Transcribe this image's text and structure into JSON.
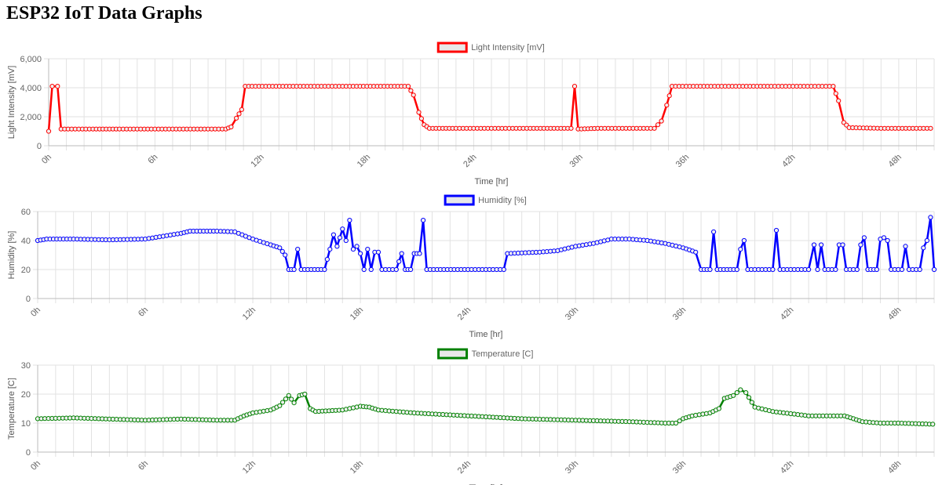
{
  "page": {
    "title": "ESP32 IoT Data Graphs"
  },
  "chart_data": [
    {
      "type": "line",
      "series_name": "Light Intensity [mV]",
      "color": "#ff0000",
      "ylabel": "Light Intensity [mV]",
      "xlabel": "Time [hr]",
      "ylim": [
        0,
        6000
      ],
      "yticks": [
        0,
        2000,
        4000,
        6000
      ],
      "ytick_labels": [
        "0",
        "2,000",
        "4,000",
        "6,000"
      ],
      "xlim": [
        0,
        50
      ],
      "xticks": [
        0,
        6,
        12,
        18,
        24,
        30,
        36,
        42,
        48
      ],
      "xtick_labels": [
        "0h",
        "6h",
        "12h",
        "18h",
        "24h",
        "30h",
        "36h",
        "42h",
        "48h"
      ],
      "points": [
        [
          0,
          1000
        ],
        [
          0.2,
          4100
        ],
        [
          0.5,
          4100
        ],
        [
          0.7,
          1150
        ],
        [
          1.5,
          1150
        ],
        [
          2.5,
          1150
        ],
        [
          4,
          1150
        ],
        [
          6,
          1150
        ],
        [
          8,
          1150
        ],
        [
          10,
          1150
        ],
        [
          10.3,
          1300
        ],
        [
          10.6,
          1900
        ],
        [
          10.9,
          2500
        ],
        [
          11.1,
          4100
        ],
        [
          14,
          4100
        ],
        [
          17,
          4100
        ],
        [
          20.3,
          4100
        ],
        [
          20.6,
          3500
        ],
        [
          20.9,
          2300
        ],
        [
          21.2,
          1450
        ],
        [
          21.5,
          1200
        ],
        [
          23,
          1200
        ],
        [
          25,
          1200
        ],
        [
          27,
          1200
        ],
        [
          29.5,
          1200
        ],
        [
          29.7,
          4100
        ],
        [
          29.9,
          1150
        ],
        [
          31,
          1200
        ],
        [
          33,
          1200
        ],
        [
          34.2,
          1200
        ],
        [
          34.6,
          1700
        ],
        [
          34.9,
          2800
        ],
        [
          35.2,
          4100
        ],
        [
          38,
          4100
        ],
        [
          41,
          4100
        ],
        [
          44.3,
          4100
        ],
        [
          44.6,
          3100
        ],
        [
          44.9,
          1600
        ],
        [
          45.2,
          1250
        ],
        [
          47,
          1200
        ],
        [
          49.8,
          1200
        ]
      ]
    },
    {
      "type": "line",
      "series_name": "Humidity [%]",
      "color": "#0000ff",
      "ylabel": "Humidity [%]",
      "xlabel": "Time [hr]",
      "ylim": [
        0,
        60
      ],
      "yticks": [
        0,
        20,
        40,
        60
      ],
      "ytick_labels": [
        "0",
        "20",
        "40",
        "60"
      ],
      "xlim": [
        0,
        50
      ],
      "xticks": [
        0,
        6,
        12,
        18,
        24,
        30,
        36,
        42,
        48
      ],
      "xtick_labels": [
        "0h",
        "6h",
        "12h",
        "18h",
        "24h",
        "30h",
        "36h",
        "42h",
        "48h"
      ],
      "points": [
        [
          0,
          40
        ],
        [
          0.5,
          41
        ],
        [
          2,
          41
        ],
        [
          4,
          40.5
        ],
        [
          6,
          41
        ],
        [
          7,
          43
        ],
        [
          8,
          45
        ],
        [
          8.5,
          46.5
        ],
        [
          10,
          46.5
        ],
        [
          11,
          46
        ],
        [
          12,
          41
        ],
        [
          13,
          37
        ],
        [
          13.5,
          35
        ],
        [
          13.8,
          30
        ],
        [
          14,
          20
        ],
        [
          14.3,
          20
        ],
        [
          14.5,
          34
        ],
        [
          14.7,
          20
        ],
        [
          16,
          20
        ],
        [
          16.3,
          34
        ],
        [
          16.5,
          44
        ],
        [
          16.7,
          36
        ],
        [
          17,
          48
        ],
        [
          17.2,
          40
        ],
        [
          17.4,
          54
        ],
        [
          17.6,
          34
        ],
        [
          17.8,
          36
        ],
        [
          18,
          31
        ],
        [
          18.2,
          20
        ],
        [
          18.4,
          34
        ],
        [
          18.6,
          20
        ],
        [
          18.8,
          32
        ],
        [
          19,
          32
        ],
        [
          19.2,
          20
        ],
        [
          20,
          20
        ],
        [
          20.3,
          31
        ],
        [
          20.5,
          20
        ],
        [
          20.8,
          20
        ],
        [
          21,
          31
        ],
        [
          21.3,
          31
        ],
        [
          21.5,
          54
        ],
        [
          21.7,
          20
        ],
        [
          24,
          20
        ],
        [
          26,
          20
        ],
        [
          26.2,
          31
        ],
        [
          28,
          32
        ],
        [
          29,
          33
        ],
        [
          30,
          36
        ],
        [
          31,
          38
        ],
        [
          32,
          41
        ],
        [
          33,
          41
        ],
        [
          34,
          40
        ],
        [
          35,
          38
        ],
        [
          36,
          35
        ],
        [
          36.7,
          32
        ],
        [
          37,
          20
        ],
        [
          37.5,
          20
        ],
        [
          37.7,
          46
        ],
        [
          37.9,
          20
        ],
        [
          39,
          20
        ],
        [
          39.2,
          34
        ],
        [
          39.4,
          40
        ],
        [
          39.6,
          20
        ],
        [
          41,
          20
        ],
        [
          41.2,
          47
        ],
        [
          41.4,
          20
        ],
        [
          43,
          20
        ],
        [
          43.3,
          37
        ],
        [
          43.5,
          20
        ],
        [
          43.7,
          37
        ],
        [
          43.9,
          20
        ],
        [
          44.5,
          20
        ],
        [
          44.7,
          37
        ],
        [
          44.9,
          37
        ],
        [
          45.1,
          20
        ],
        [
          45.7,
          20
        ],
        [
          45.9,
          37
        ],
        [
          46.1,
          42
        ],
        [
          46.3,
          20
        ],
        [
          46.8,
          20
        ],
        [
          47,
          41
        ],
        [
          47.2,
          42
        ],
        [
          47.4,
          40
        ],
        [
          47.6,
          20
        ],
        [
          48.2,
          20
        ],
        [
          48.4,
          36
        ],
        [
          48.6,
          20
        ],
        [
          49.2,
          20
        ],
        [
          49.4,
          35
        ],
        [
          49.6,
          40
        ],
        [
          49.8,
          56
        ],
        [
          50,
          20
        ],
        [
          50.5,
          20
        ]
      ]
    },
    {
      "type": "line",
      "series_name": "Temperature [C]",
      "color": "#008000",
      "ylabel": "Temperature [C]",
      "xlabel": "Time [hr]",
      "ylim": [
        0,
        30
      ],
      "yticks": [
        0,
        10,
        20,
        30
      ],
      "ytick_labels": [
        "0",
        "10",
        "20",
        "30"
      ],
      "xlim": [
        0,
        50
      ],
      "xticks": [
        0,
        6,
        12,
        18,
        24,
        30,
        36,
        42,
        48
      ],
      "xtick_labels": [
        "0h",
        "6h",
        "12h",
        "18h",
        "24h",
        "30h",
        "36h",
        "42h",
        "48h"
      ],
      "points": [
        [
          0,
          11.5
        ],
        [
          2,
          11.8
        ],
        [
          4,
          11.4
        ],
        [
          6,
          11
        ],
        [
          8,
          11.4
        ],
        [
          10,
          11
        ],
        [
          11,
          11
        ],
        [
          11.5,
          12.5
        ],
        [
          12,
          13.5
        ],
        [
          13,
          14.5
        ],
        [
          13.5,
          16
        ],
        [
          14,
          19.5
        ],
        [
          14.3,
          17
        ],
        [
          14.6,
          19.5
        ],
        [
          14.9,
          20
        ],
        [
          15.2,
          15
        ],
        [
          15.5,
          14
        ],
        [
          17,
          14.5
        ],
        [
          18,
          15.8
        ],
        [
          18.5,
          15.5
        ],
        [
          19,
          14.5
        ],
        [
          20,
          14
        ],
        [
          21,
          13.5
        ],
        [
          24,
          12.5
        ],
        [
          27,
          11.5
        ],
        [
          30,
          11
        ],
        [
          33,
          10.5
        ],
        [
          35,
          10
        ],
        [
          35.6,
          10
        ],
        [
          36,
          11.5
        ],
        [
          36.5,
          12.5
        ],
        [
          37.5,
          13.5
        ],
        [
          38,
          15
        ],
        [
          38.3,
          18.5
        ],
        [
          38.8,
          19.5
        ],
        [
          39.2,
          21.5
        ],
        [
          39.5,
          20.5
        ],
        [
          40,
          15.5
        ],
        [
          41,
          14
        ],
        [
          43,
          12.5
        ],
        [
          45,
          12.5
        ],
        [
          45.5,
          11.5
        ],
        [
          46,
          10.5
        ],
        [
          47,
          10
        ],
        [
          48,
          10
        ],
        [
          50.5,
          9.5
        ]
      ]
    }
  ]
}
